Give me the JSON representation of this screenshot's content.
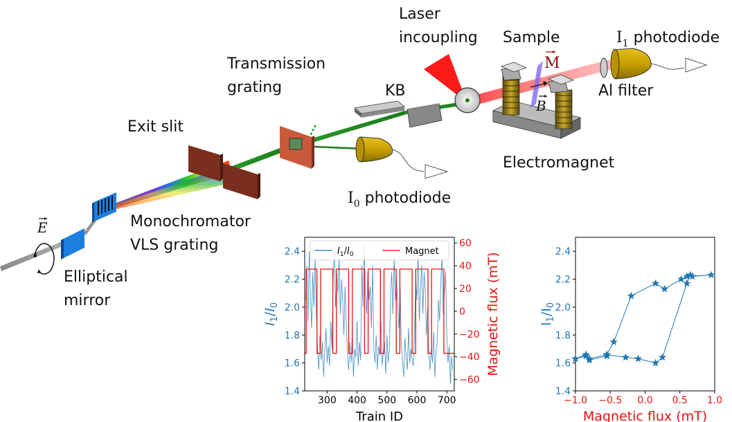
{
  "labels": {
    "laser": "Laser",
    "incoupling": "incoupling",
    "sample": "Sample",
    "i1_photodiode_prefix": "I",
    "i1_photodiode_sub": "1",
    "i1_photodiode_suffix": " photodiode",
    "transmission": "Transmission",
    "grating": "grating",
    "kb": "KB",
    "magnetization_vec": "M",
    "field_vec": "B",
    "al_filter": "Al filter",
    "exit_slit": "Exit slit",
    "electromagnet": "Electromagnet",
    "i0_photodiode_prefix": "I",
    "i0_photodiode_sub": "0",
    "i0_photodiode_suffix": " photodiode",
    "efield_vec": "E",
    "monochromator": "Monochromator",
    "vls_grating": "VLS grating",
    "elliptical": "Elliptical",
    "mirror": "mirror"
  },
  "colors": {
    "blue": "#1f77b4",
    "red": "#e8120e",
    "green": "#1e8a1e",
    "gold": "#c8a200"
  },
  "chart_data": [
    {
      "type": "line",
      "xlabel": "Train ID",
      "ylabel": "I1/I0",
      "ylabel_right": "Magnetic flux (mT)",
      "xlim": [
        225,
        725
      ],
      "ylim": [
        1.4,
        2.5
      ],
      "ylim_right": [
        -70,
        65
      ],
      "xticks": [
        300,
        400,
        500,
        600,
        700
      ],
      "yticks": [
        1.4,
        1.6,
        1.8,
        2.0,
        2.2,
        2.4
      ],
      "yticks_right": [
        -60,
        -40,
        -20,
        0,
        20,
        40,
        60
      ],
      "legend": [
        "I1/I0",
        "Magnet"
      ],
      "legend_placement": "top",
      "series": [
        {
          "name": "Magnet",
          "axis": "right",
          "x": [
            225,
            230,
            230,
            266,
            266,
            278,
            278,
            319,
            319,
            331,
            331,
            372,
            372,
            384,
            384,
            425,
            425,
            437,
            437,
            478,
            478,
            490,
            490,
            531,
            531,
            543,
            543,
            584,
            584,
            596,
            596,
            637,
            637,
            649,
            649,
            690,
            690,
            725
          ],
          "values": [
            -37,
            -37,
            37,
            37,
            -37,
            -37,
            37,
            37,
            -37,
            -37,
            37,
            37,
            -37,
            -37,
            37,
            37,
            -37,
            -37,
            37,
            37,
            -37,
            -37,
            37,
            37,
            -37,
            -37,
            37,
            37,
            -37,
            -37,
            37,
            37,
            -37,
            -37,
            37,
            37,
            -37,
            -37
          ]
        },
        {
          "name": "I1/I0",
          "axis": "left",
          "x": [
            228,
            232,
            236,
            240,
            244,
            248,
            252,
            256,
            260,
            264,
            268,
            272,
            276,
            280,
            284,
            288,
            292,
            296,
            300,
            304,
            308,
            312,
            316,
            320,
            324,
            328,
            332,
            336,
            340,
            344,
            348,
            352,
            356,
            360,
            364,
            368,
            372,
            376,
            380,
            384,
            388,
            392,
            396,
            400,
            404,
            408,
            412,
            416,
            420,
            424,
            428,
            432,
            436,
            440,
            444,
            448,
            452,
            456,
            460,
            464,
            468,
            472,
            476,
            480,
            484,
            488,
            492,
            496,
            500,
            504,
            508,
            512,
            516,
            520,
            524,
            528,
            532,
            536,
            540,
            544,
            548,
            552,
            556,
            560,
            564,
            568,
            572,
            576,
            580,
            584,
            588,
            592,
            596,
            600,
            604,
            608,
            612,
            616,
            620,
            624,
            628,
            632,
            636,
            640,
            644,
            648,
            652,
            656,
            660,
            664,
            668,
            672,
            676,
            680,
            684,
            688,
            692,
            696,
            700,
            704,
            708,
            712,
            716,
            720
          ],
          "values": [
            2.05,
            2.3,
            1.9,
            2.4,
            2.1,
            1.85,
            2.25,
            2.0,
            2.35,
            1.95,
            1.7,
            1.55,
            1.8,
            1.62,
            1.75,
            1.5,
            1.68,
            1.85,
            1.6,
            1.72,
            1.58,
            1.9,
            1.7,
            2.2,
            2.4,
            2.0,
            2.25,
            2.1,
            2.35,
            1.95,
            2.2,
            2.05,
            1.8,
            2.15,
            1.9,
            1.65,
            1.55,
            1.75,
            1.6,
            1.82,
            1.5,
            1.7,
            1.64,
            1.9,
            1.58,
            1.75,
            1.62,
            2.3,
            2.0,
            2.45,
            2.1,
            1.95,
            2.25,
            2.05,
            2.15,
            1.85,
            2.3,
            1.7,
            1.6,
            1.8,
            1.55,
            1.72,
            1.65,
            1.9,
            1.58,
            1.68,
            1.75,
            1.52,
            1.8,
            1.6,
            1.7,
            2.1,
            2.25,
            1.95,
            2.35,
            2.05,
            2.2,
            2.0,
            1.85,
            2.15,
            1.75,
            1.6,
            1.5,
            1.78,
            1.65,
            1.55,
            1.85,
            1.6,
            1.7,
            1.62,
            1.58,
            1.8,
            2.2,
            2.05,
            2.4,
            1.9,
            2.15,
            2.3,
            1.95,
            2.25,
            2.1,
            1.8,
            2.0,
            1.65,
            1.55,
            1.7,
            1.6,
            1.82,
            1.5,
            1.68,
            1.75,
            2.05,
            1.9,
            2.2,
            2.35,
            1.95,
            2.1,
            2.25,
            1.8,
            1.6,
            1.72,
            1.45,
            1.65,
            1.55
          ]
        }
      ]
    },
    {
      "type": "scatter",
      "xlabel": "Magnetic flux (mT)",
      "ylabel": "I1/I0",
      "xlim": [
        -1.0,
        1.0
      ],
      "ylim": [
        1.4,
        2.5
      ],
      "xticks": [
        -1.0,
        -0.5,
        0.0,
        0.5,
        1.0
      ],
      "xtick_labels": [
        "−1.0",
        "−0.5",
        "0.0",
        "0.5",
        "1.0"
      ],
      "yticks": [
        1.4,
        1.6,
        1.8,
        2.0,
        2.2,
        2.4
      ],
      "marker": "star",
      "x": [
        -1.0,
        -0.85,
        -0.8,
        -0.55,
        -0.55,
        -0.28,
        -0.1,
        0.15,
        0.25,
        0.6,
        0.65,
        0.68,
        0.95,
        0.6,
        0.52,
        0.28,
        0.15,
        -0.2,
        -0.45,
        -0.55,
        -0.8,
        -0.85,
        -1.0
      ],
      "values": [
        1.63,
        1.65,
        1.62,
        1.65,
        1.66,
        1.64,
        1.63,
        1.6,
        1.64,
        2.17,
        2.23,
        2.22,
        2.23,
        2.22,
        2.2,
        2.13,
        2.17,
        2.08,
        1.75,
        1.66,
        1.63,
        1.66,
        1.63
      ]
    }
  ]
}
